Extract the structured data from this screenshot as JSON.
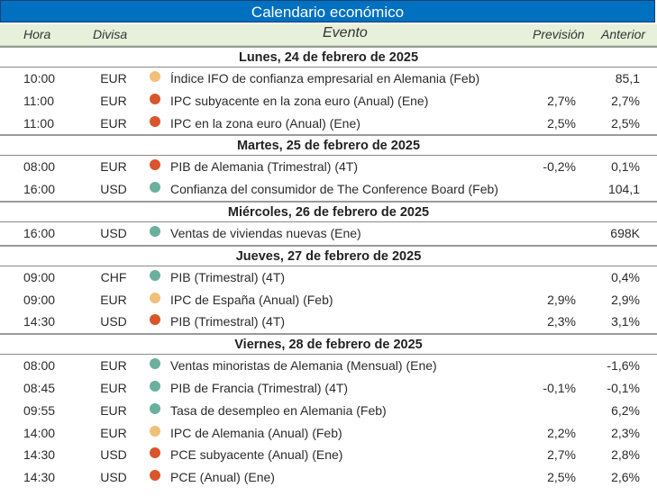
{
  "title": "Calendario económico",
  "headers": {
    "hora": "Hora",
    "divisa": "Divisa",
    "evento": "Evento",
    "prevision": "Previsión",
    "anterior": "Anterior"
  },
  "colors": {
    "high": "#d9552b",
    "medium": "#f0c078",
    "low": "#6ab09c"
  },
  "days": [
    {
      "label": "Lunes, 24 de febrero de 2025",
      "events": [
        {
          "time": "10:00",
          "currency": "EUR",
          "impact": "medium",
          "event": "Índice IFO de confianza empresarial en Alemania (Feb)",
          "forecast": "",
          "previous": "85,1"
        },
        {
          "time": "11:00",
          "currency": "EUR",
          "impact": "high",
          "event": "IPC subyacente en la zona euro (Anual) (Ene)",
          "forecast": "2,7%",
          "previous": "2,7%"
        },
        {
          "time": "11:00",
          "currency": "EUR",
          "impact": "high",
          "event": "IPC en la zona euro (Anual) (Ene)",
          "forecast": "2,5%",
          "previous": "2,5%"
        }
      ]
    },
    {
      "label": "Martes, 25 de febrero de 2025",
      "events": [
        {
          "time": "08:00",
          "currency": "EUR",
          "impact": "high",
          "event": "PIB de Alemania (Trimestral) (4T)",
          "forecast": "-0,2%",
          "previous": "0,1%"
        },
        {
          "time": "16:00",
          "currency": "USD",
          "impact": "low",
          "event": "Confianza del consumidor de The Conference Board (Feb)",
          "forecast": "",
          "previous": "104,1"
        }
      ]
    },
    {
      "label": "Miércoles, 26 de febrero de 2025",
      "events": [
        {
          "time": "16:00",
          "currency": "USD",
          "impact": "low",
          "event": "Ventas de viviendas nuevas (Ene)",
          "forecast": "",
          "previous": "698K"
        }
      ]
    },
    {
      "label": "Jueves, 27 de febrero de 2025",
      "events": [
        {
          "time": "09:00",
          "currency": "CHF",
          "impact": "low",
          "event": "PIB (Trimestral) (4T)",
          "forecast": "",
          "previous": "0,4%"
        },
        {
          "time": "09:00",
          "currency": "EUR",
          "impact": "medium",
          "event": "IPC de España (Anual) (Feb)",
          "forecast": "2,9%",
          "previous": "2,9%"
        },
        {
          "time": "14:30",
          "currency": "USD",
          "impact": "high",
          "event": "PIB (Trimestral) (4T)",
          "forecast": "2,3%",
          "previous": "3,1%"
        }
      ]
    },
    {
      "label": "Viernes, 28 de febrero de 2025",
      "events": [
        {
          "time": "08:00",
          "currency": "EUR",
          "impact": "low",
          "event": "Ventas minoristas de Alemania (Mensual) (Ene)",
          "forecast": "",
          "previous": "-1,6%"
        },
        {
          "time": "08:45",
          "currency": "EUR",
          "impact": "low",
          "event": "PIB de Francia (Trimestral) (4T)",
          "forecast": "-0,1%",
          "previous": "-0,1%"
        },
        {
          "time": "09:55",
          "currency": "EUR",
          "impact": "low",
          "event": "Tasa de desempleo en Alemania (Feb)",
          "forecast": "",
          "previous": "6,2%"
        },
        {
          "time": "14:00",
          "currency": "EUR",
          "impact": "medium",
          "event": "IPC de Alemania (Anual) (Feb)",
          "forecast": "2,2%",
          "previous": "2,3%"
        },
        {
          "time": "14:30",
          "currency": "USD",
          "impact": "high",
          "event": "PCE subyacente (Anual) (Ene)",
          "forecast": "2,7%",
          "previous": "2,8%"
        },
        {
          "time": "14:30",
          "currency": "USD",
          "impact": "high",
          "event": "PCE (Anual) (Ene)",
          "forecast": "2,5%",
          "previous": "2,6%"
        }
      ]
    }
  ]
}
